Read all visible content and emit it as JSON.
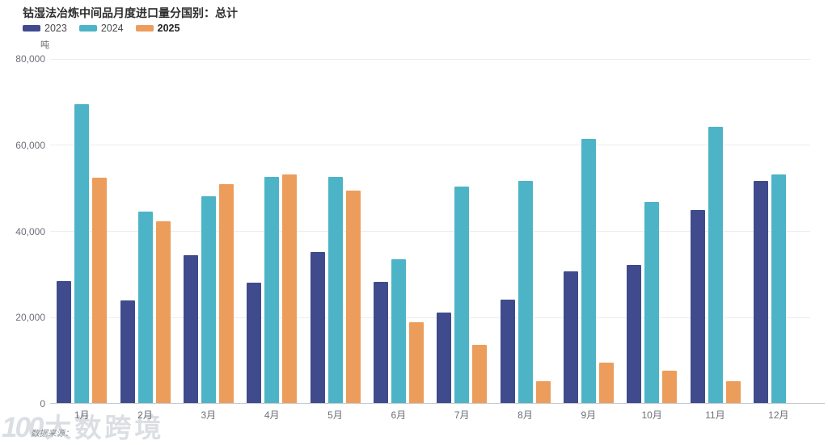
{
  "header": {
    "title": "钴湿法冶炼中间品月度进口量分国别：总计"
  },
  "legend": {
    "items": [
      {
        "label": "2023",
        "color": "#3f4b8c",
        "bold": false
      },
      {
        "label": "2024",
        "color": "#4cb4c6",
        "bold": false
      },
      {
        "label": "2025",
        "color": "#ec9d5c",
        "bold": true
      }
    ]
  },
  "chart_data": {
    "type": "bar",
    "title": "钴湿法冶炼中间品月度进口量分国别：总计",
    "unit_label": "吨",
    "xlabel": "",
    "ylabel": "吨",
    "ylim": [
      0,
      80000
    ],
    "y_ticks": [
      {
        "label": "80,000",
        "value": 80000
      },
      {
        "label": "60,000",
        "value": 60000
      },
      {
        "label": "40,000",
        "value": 40000
      },
      {
        "label": "20,000",
        "value": 20000
      },
      {
        "label": "0",
        "value": 0
      }
    ],
    "grid": true,
    "legend_position": "top-left",
    "categories": [
      "1月",
      "2月",
      "3月",
      "4月",
      "5月",
      "6月",
      "7月",
      "8月",
      "9月",
      "10月",
      "11月",
      "12月"
    ],
    "series": [
      {
        "name": "2023",
        "color": "#3f4b8c",
        "values": [
          28400,
          24000,
          34500,
          28100,
          35200,
          28200,
          21200,
          24100,
          30800,
          32200,
          44900,
          51800
        ]
      },
      {
        "name": "2024",
        "color": "#4cb4c6",
        "values": [
          69500,
          44600,
          48200,
          52700,
          52600,
          33600,
          50400,
          51800,
          61400,
          46800,
          64300,
          53300
        ]
      },
      {
        "name": "2025",
        "color": "#ec9d5c",
        "values": [
          52400,
          42300,
          51000,
          53200,
          49400,
          18900,
          13600,
          5300,
          9600,
          7600,
          5300,
          null
        ]
      }
    ]
  },
  "watermark": {
    "logo_text": "100",
    "brand": "大数跨境",
    "source_label": "数据来源："
  }
}
